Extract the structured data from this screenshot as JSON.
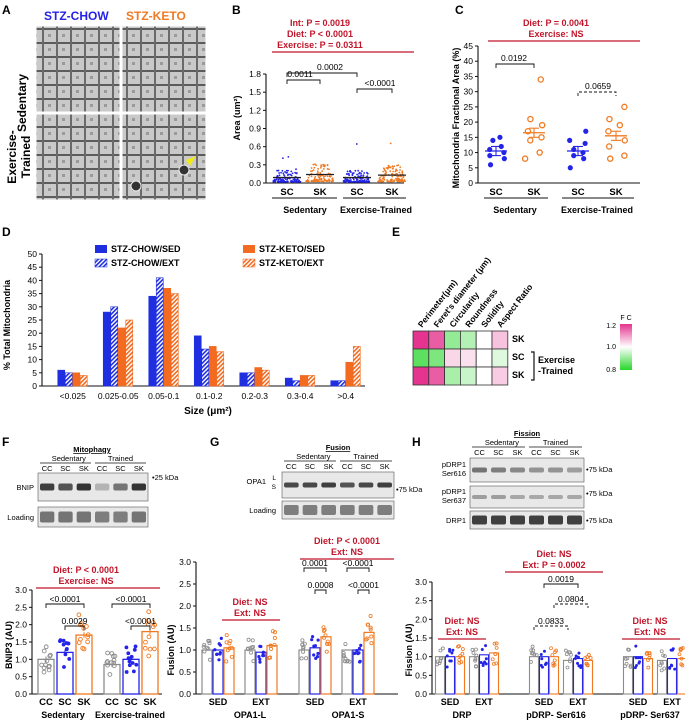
{
  "colors": {
    "chow": "#2424e8",
    "keto": "#f07a22",
    "ctrl": "#8c8c8c",
    "red": "#c0152a",
    "bar_chow": "#1f2fe0",
    "bar_keto": "#f26b21"
  },
  "panel_a": {
    "letter": "A",
    "col_chow": "STZ-CHOW",
    "col_keto": "STZ-KETO",
    "row_sed": "Sedentary",
    "row_ex1": "Exercise-",
    "row_ex2": "Trained"
  },
  "panel_b": {
    "letter": "B",
    "title1": "Int: P = 0.0019",
    "title2": "Diet: P < 0.0001",
    "title3": "Exercise: P = 0.0311",
    "ylabel": "Area (um²)",
    "yticks": [
      "0.0",
      "0.3",
      "0.6",
      "0.9",
      "1.2",
      "1.5",
      "1.8"
    ],
    "cats": [
      "SC",
      "SK",
      "SC",
      "SK"
    ],
    "groups": [
      "Sedentary",
      "Exercise-Trained"
    ],
    "p1": "0.0011",
    "p2": "0.0002",
    "p3": "<0.0001"
  },
  "panel_c": {
    "letter": "C",
    "title1": "Diet: P = 0.0041",
    "title2": "Exercise: NS",
    "ylabel": "Mitochondria Fractional Area (%)",
    "yticks": [
      "0",
      "5",
      "10",
      "15",
      "20",
      "25",
      "30",
      "35",
      "40",
      "45"
    ],
    "cats": [
      "SC",
      "SK",
      "SC",
      "SK"
    ],
    "groups": [
      "Sedentary",
      "Exercise-Trained"
    ],
    "p1": "0.0192",
    "p2": "0.0659"
  },
  "panel_d": {
    "letter": "D",
    "ylabel": "% Total Mitochondria",
    "xlabel": "Size (μm²)",
    "yticks": [
      "0",
      "5",
      "10",
      "15",
      "20",
      "25",
      "30",
      "35",
      "40",
      "45",
      "50"
    ],
    "legend": [
      "STZ-CHOW/SED",
      "STZ-KETO/SED",
      "STZ-CHOW/EXT",
      "STZ-KETO/EXT"
    ]
  },
  "panel_e": {
    "letter": "E",
    "cols": [
      "Perimeter(μm)",
      "Feret's diameter (μm)",
      "Circularity",
      "Roundness",
      "Solidity",
      "Aspect Ratio"
    ],
    "rows": [
      "SK",
      "SC",
      "SK"
    ],
    "bracket": "Exercise",
    "bracket2": "-Trained",
    "scale_label": "F C",
    "scale_ticks": [
      "1.2",
      "1.0",
      "0.8"
    ]
  },
  "panel_f": {
    "letter": "F",
    "blot_title": "Mitophagy",
    "blot_groups": [
      "Sedentary",
      "Trained"
    ],
    "lane_labels": [
      "CC",
      "SC",
      "SK",
      "CC",
      "SC",
      "SK"
    ],
    "band1": "BNIP",
    "band2": "Loading",
    "kda": "25 kDa",
    "title1": "Diet: P < 0.0001",
    "title2": "Exercise: NS",
    "ylabel": "BNIP3 (AU)",
    "yticks": [
      "0.0",
      "0.5",
      "1.0",
      "1.5",
      "2.0",
      "2.5",
      "3.0"
    ],
    "cats": [
      "CC",
      "SC",
      "SK",
      "CC",
      "SC",
      "SK"
    ],
    "groups": [
      "Sedentary",
      "Exercise-trained"
    ],
    "p": [
      "<0.0001",
      "0.0029",
      "<0.0001",
      "<0.0001"
    ]
  },
  "panel_g": {
    "letter": "G",
    "blot_title": "Fusion",
    "blot_groups": [
      "Sedentary",
      "Trained"
    ],
    "lane_labels": [
      "CC",
      "SC",
      "SK",
      "CC",
      "SC",
      "SK"
    ],
    "band1": "OPA1",
    "band_l": "L",
    "band_s": "S",
    "band2": "Loading",
    "kda": "75 kDa",
    "t_l1": "Diet: NS",
    "t_l2": "Ext: NS",
    "t_s1": "Diet: P < 0.0001",
    "t_s2": "Ext: NS",
    "ylabel": "Fusion (AU)",
    "yticks": [
      "0.0",
      "0.5",
      "1.0",
      "1.5",
      "2.0",
      "2.5",
      "3.0"
    ],
    "xl": [
      "SED",
      "EXT",
      "SED",
      "EXT"
    ],
    "groups": [
      "OPA1-L",
      "OPA1-S"
    ],
    "p": [
      "0.0001",
      "0.0008",
      "<0.0001",
      "<0.0001"
    ]
  },
  "panel_h": {
    "letter": "H",
    "blot_title": "Fission",
    "blot_groups": [
      "Sedentary",
      "Trained"
    ],
    "lane_labels": [
      "CC",
      "SC",
      "SK",
      "CC",
      "SC",
      "SK"
    ],
    "band1a": "pDRP1",
    "band1b": "Ser616",
    "band2a": "pDRP1",
    "band2b": "Ser637",
    "band3": "DRP1",
    "kda": "75 kDa",
    "t_a1": "Diet: NS",
    "t_a2": "Ext: NS",
    "t_b1": "Diet: NS",
    "t_b2": "Ext: P = 0.0002",
    "t_c1": "Diet: NS",
    "t_c2": "Ext: NS",
    "ylabel": "Fission (AU)",
    "yticks": [
      "0.0",
      "0.5",
      "1.0",
      "1.5",
      "2.0",
      "2.5",
      "3.0"
    ],
    "xl": [
      "SED",
      "EXT",
      "SED",
      "EXT",
      "SED",
      "EXT"
    ],
    "groups": [
      "DRP",
      "pDRP- Ser616",
      "pDRP- Ser637"
    ],
    "p": [
      "0.0019",
      "0.0804",
      "0.0833"
    ]
  },
  "chart_data": [
    {
      "type": "scatter",
      "panel": "B",
      "title": "Int: P = 0.0019; Diet: P < 0.0001; Exercise: P = 0.0311",
      "ylabel": "Area (um²)",
      "ylim": [
        0,
        1.8
      ],
      "categories": [
        "Sedentary SC",
        "Sedentary SK",
        "Exercise-Trained SC",
        "Exercise-Trained SK"
      ],
      "values": [
        0.09,
        0.14,
        0.09,
        0.13
      ]
    },
    {
      "type": "scatter",
      "panel": "C",
      "title": "Diet: P = 0.0041; Exercise: NS",
      "ylabel": "Mitochondria Fractional Area (%)",
      "ylim": [
        0,
        45
      ],
      "categories": [
        "Sedentary SC",
        "Sedentary SK",
        "Exercise-Trained SC",
        "Exercise-Trained SK"
      ],
      "values": [
        10.5,
        16.5,
        10.5,
        15.5
      ],
      "points": [
        [
          6,
          8,
          9,
          10,
          11,
          12,
          14,
          15
        ],
        [
          8,
          10,
          14,
          15,
          17,
          19,
          21,
          34
        ],
        [
          5,
          8,
          9,
          10,
          11,
          13,
          14,
          17
        ],
        [
          8,
          9,
          12,
          14,
          17,
          19,
          21,
          25
        ]
      ]
    },
    {
      "type": "bar",
      "panel": "D",
      "ylabel": "% Total Mitochondria",
      "xlabel": "Size (μm²)",
      "ylim": [
        0,
        50
      ],
      "categories": [
        "<0.025",
        "0.025-0.05",
        "0.05-0.1",
        "0.1-0.2",
        "0.2-0.3",
        "0.3-0.4",
        ">0.4"
      ],
      "series": [
        {
          "name": "STZ-CHOW/SED",
          "values": [
            6,
            28,
            34,
            19,
            5,
            3,
            2
          ]
        },
        {
          "name": "STZ-KETO/SED",
          "values": [
            5,
            22,
            37,
            15,
            7,
            4,
            9
          ]
        },
        {
          "name": "STZ-CHOW/EXT",
          "values": [
            5,
            30,
            41,
            14,
            5,
            2,
            2
          ]
        },
        {
          "name": "STZ-KETO/EXT",
          "values": [
            4,
            25,
            35,
            13,
            6,
            4,
            15
          ]
        }
      ]
    },
    {
      "type": "heatmap",
      "panel": "E",
      "columns": [
        "Perimeter(μm)",
        "Feret's diameter (μm)",
        "Circularity",
        "Roundness",
        "Solidity",
        "Aspect Ratio"
      ],
      "rows": [
        "SK",
        "SC (Exercise-Trained)",
        "SK (Exercise-Trained)"
      ],
      "values": [
        [
          1.2,
          1.16,
          0.9,
          0.93,
          1.0,
          1.06
        ],
        [
          0.85,
          0.88,
          1.04,
          1.03,
          1.0,
          0.97
        ],
        [
          1.2,
          1.16,
          0.92,
          0.95,
          1.0,
          1.05
        ]
      ]
    },
    {
      "type": "bar",
      "panel": "F",
      "title": "Diet: P < 0.0001; Exercise: NS",
      "ylabel": "BNIP3 (AU)",
      "ylim": [
        0,
        3
      ],
      "categories": [
        "CC",
        "SC",
        "SK",
        "CC",
        "SC",
        "SK"
      ],
      "values": [
        1.0,
        1.2,
        1.7,
        0.85,
        1.0,
        1.8
      ]
    },
    {
      "type": "bar",
      "panel": "G",
      "ylabel": "Fusion (AU)",
      "ylim": [
        0,
        3
      ],
      "categories": [
        "OPA1-L SED CC",
        "OPA1-L SED SC",
        "OPA1-L SED SK",
        "OPA1-L EXT CC",
        "OPA1-L EXT SC",
        "OPA1-L EXT SK",
        "OPA1-S SED CC",
        "OPA1-S SED SC",
        "OPA1-S SED SK",
        "OPA1-S EXT CC",
        "OPA1-S EXT SC",
        "OPA1-S EXT SK"
      ],
      "values": [
        1.0,
        1.0,
        1.05,
        1.0,
        0.95,
        1.1,
        1.0,
        1.05,
        1.3,
        1.0,
        1.0,
        1.4
      ]
    },
    {
      "type": "bar",
      "panel": "H",
      "ylabel": "Fission (AU)",
      "ylim": [
        0,
        3
      ],
      "categories": [
        "DRP SED CC",
        "DRP SED SC",
        "DRP SED SK",
        "DRP EXT CC",
        "DRP EXT SC",
        "DRP EXT SK",
        "Ser616 SED CC",
        "Ser616 SED SC",
        "Ser616 SED SK",
        "Ser616 EXT CC",
        "Ser616 EXT SC",
        "Ser616 EXT SK",
        "Ser637 SED CC",
        "Ser637 SED SC",
        "Ser637 SED SK",
        "Ser637 EXT CC",
        "Ser637 EXT SC",
        "Ser637 EXT SK"
      ],
      "values": [
        1.0,
        1.0,
        1.0,
        1.0,
        1.05,
        1.1,
        1.0,
        1.0,
        1.0,
        0.9,
        0.95,
        0.9,
        1.0,
        1.0,
        0.95,
        0.9,
        0.95,
        0.95
      ]
    }
  ]
}
